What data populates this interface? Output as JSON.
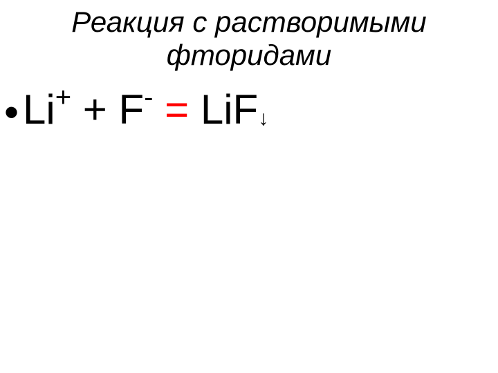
{
  "title": "Реакция с растворимыми фторидами",
  "equation": {
    "ion1_base": "Li",
    "ion1_charge": "+",
    "operator_plus": " + ",
    "ion2_base": "F",
    "ion2_charge": "-",
    "equals": " = ",
    "product": "LiF",
    "precip_arrow": "↓"
  },
  "colors": {
    "text": "#000000",
    "equals": "#ff0000",
    "background": "#ffffff"
  },
  "typography": {
    "title_fontsize": 42,
    "title_style": "italic",
    "equation_fontsize": 60,
    "superscript_fontsize": 40,
    "arrow_fontsize": 30,
    "font_family": "Arial"
  }
}
